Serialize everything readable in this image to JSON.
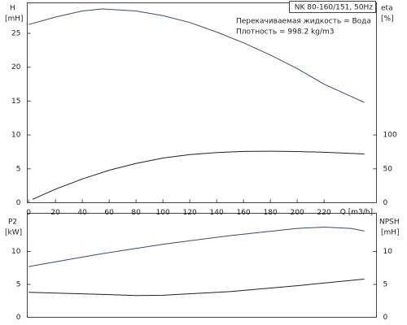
{
  "chart_data": [
    {
      "type": "line",
      "title": "NK 80-160/151, 50Hz",
      "annotations": [
        "Перекачиваемая жидкость = Вода",
        "Плотность = 998.2 kg/m3"
      ],
      "xlabel": "Q [m3/h]",
      "ylabel": "H",
      "yunit": "[mH]",
      "y2label": "eta",
      "y2unit": "[%]",
      "xlim": [
        -1,
        259
      ],
      "xticks": [
        0,
        20,
        40,
        60,
        80,
        100,
        120,
        140,
        160,
        180,
        200,
        220
      ],
      "ylim": [
        0,
        29.5
      ],
      "yticks": [
        0,
        5,
        10,
        15,
        20,
        25
      ],
      "y2lim": [
        0,
        295
      ],
      "y2ticks": [
        0,
        50,
        100
      ],
      "series": [
        {
          "color": "#3b4a78",
          "x": [
            0,
            20,
            40,
            55,
            80,
            100,
            120,
            140,
            160,
            180,
            200,
            220,
            250
          ],
          "values": [
            26.3,
            27.4,
            28.3,
            28.6,
            28.3,
            27.6,
            26.6,
            25.2,
            23.6,
            21.8,
            19.8,
            17.5,
            14.8
          ]
        },
        {
          "color": "#222222",
          "axis": "y2",
          "x": [
            3,
            20,
            40,
            60,
            80,
            100,
            120,
            140,
            160,
            180,
            200,
            220,
            250
          ],
          "values": [
            5,
            20,
            35,
            48,
            58,
            66,
            71,
            74,
            75.7,
            76,
            75.5,
            74.5,
            72
          ]
        }
      ]
    },
    {
      "type": "line",
      "ylabel": "P2",
      "yunit": "[kW]",
      "y2label": "NPSH",
      "y2unit": "[mH]",
      "xlim": [
        -1,
        259
      ],
      "ylim": [
        0,
        15.8
      ],
      "yticks": [
        0,
        5,
        10
      ],
      "y2lim": [
        0,
        15.8
      ],
      "y2ticks": [
        0,
        5,
        10
      ],
      "series": [
        {
          "color": "#3b4a78",
          "x": [
            0,
            50,
            100,
            150,
            200,
            220,
            240,
            250
          ],
          "values": [
            7.7,
            9.5,
            11.1,
            12.4,
            13.5,
            13.7,
            13.5,
            13.1
          ]
        },
        {
          "color": "#222222",
          "axis": "y2",
          "x": [
            0,
            50,
            80,
            100,
            150,
            200,
            250
          ],
          "values": [
            3.8,
            3.5,
            3.3,
            3.35,
            3.9,
            4.8,
            5.8
          ]
        }
      ]
    }
  ]
}
